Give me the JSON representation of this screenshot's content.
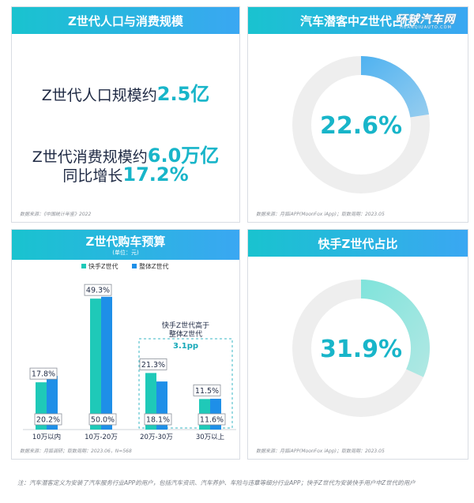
{
  "cards": {
    "population": {
      "title": "Z世代人口与消费规模",
      "pop_prefix": "Z世代人口规模约",
      "pop_value": "2.5亿",
      "cons_prefix": "Z世代消费规模约",
      "cons_value": "6.0万亿",
      "yoy_prefix": "同比增长",
      "yoy_value": "17.2%",
      "source": "数据来源：《中国统计年鉴》2022"
    },
    "share": {
      "title": "汽车潜客中Z世代占比",
      "source": "数据来源：月狐iAPP(MoonFox iApp)；取数周期：2023.05"
    },
    "budget": {
      "title": "Z世代购车预算",
      "subtitle": "(单位：元)",
      "callout_line1": "快手Z世代高于",
      "callout_line2": "整体Z世代",
      "callout_value": "3.1pp",
      "source": "数据来源：月狐调研；取数周期：2023.06，N=568"
    },
    "kuaishou": {
      "title": "快手Z世代占比",
      "source": "数据来源：月狐iAPP(MoonFox iApp)；取数周期：2023.05"
    }
  },
  "watermark": {
    "main": "环球汽车网",
    "sub": "HUANQIUAUTO.COM"
  },
  "footnote": "注：汽车潜客定义为安装了汽车服务行业APP的用户，包括汽车资讯、汽车养护、车险与违章等细分行业APP；快手Z世代为安装快手用户中Z世代的用户",
  "colors": {
    "teal": "#1fc9b8",
    "blue": "#1e8fe8",
    "donut_track": "#eeeeee",
    "share_arc": "#4fb2f0",
    "kuaishou_arc": "#7fe3db",
    "text_accent": "#18b5c9"
  },
  "chart_data": [
    {
      "type": "pie",
      "subtype": "donut",
      "title": "汽车潜客中Z世代占比",
      "value_percent": 22.6,
      "label": "22.6%"
    },
    {
      "type": "bar",
      "title": "Z世代购车预算",
      "subtitle": "(单位：元)",
      "categories": [
        "10万以内",
        "10万-20万",
        "20万-30万",
        "30万以上"
      ],
      "series": [
        {
          "name": "快手Z世代",
          "values": [
            17.8,
            49.3,
            21.3,
            11.5
          ],
          "labels": [
            "17.8%",
            "49.3%",
            "21.3%",
            "11.5%"
          ]
        },
        {
          "name": "整体Z世代",
          "values": [
            20.2,
            50.0,
            18.1,
            11.6
          ],
          "labels": [
            "20.2%",
            "50.0%",
            "18.1%",
            "11.6%"
          ]
        }
      ],
      "ylim": [
        0,
        55
      ],
      "legend_position": "top-center",
      "annotation": {
        "lines": [
          "快手Z世代高于",
          "整体Z世代"
        ],
        "value": "3.1pp",
        "categories": [
          "20万-30万",
          "30万以上"
        ]
      }
    },
    {
      "type": "pie",
      "subtype": "donut",
      "title": "快手Z世代占比",
      "value_percent": 31.9,
      "label": "31.9%"
    }
  ]
}
